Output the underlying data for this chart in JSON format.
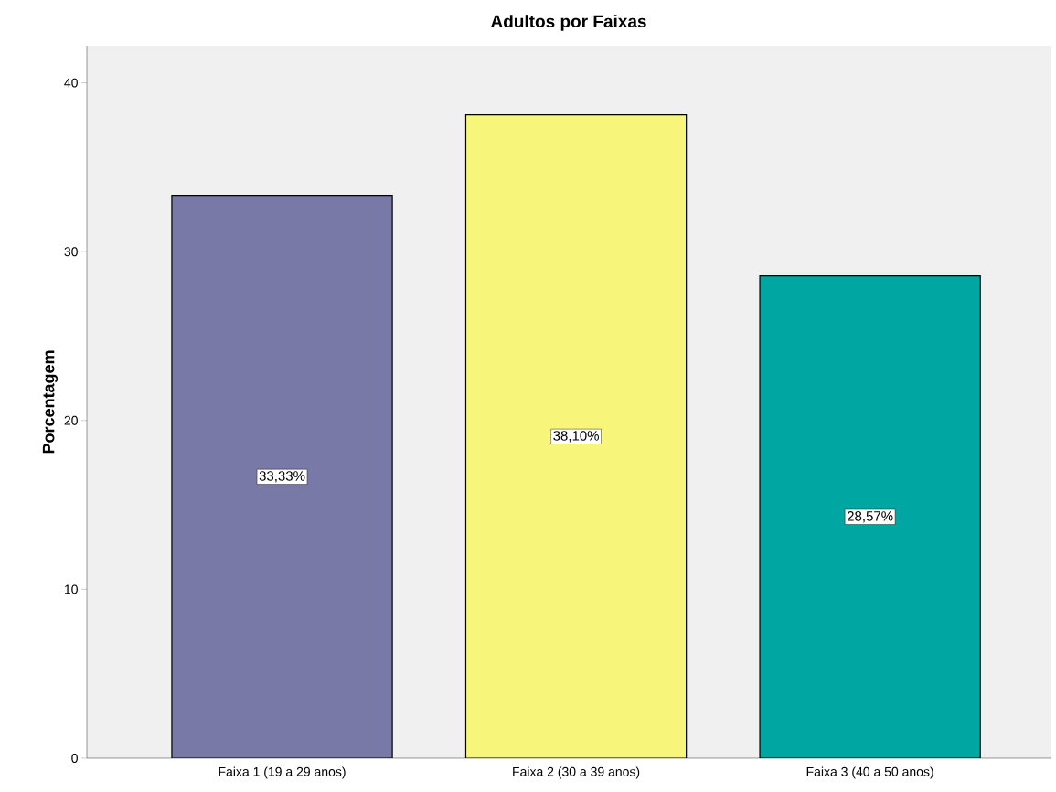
{
  "chart_data": {
    "type": "bar",
    "title": "Adultos por Faixas",
    "ylabel": "Porcentagem",
    "categories": [
      "Faixa 1 (19 a 29 anos)",
      "Faixa 2 (30 a 39 anos)",
      "Faixa 3 (40 a 50 anos)"
    ],
    "values": [
      33.33,
      38.1,
      28.57
    ],
    "colors": [
      "#7879a7",
      "#f7f57a",
      "#00a6a2"
    ],
    "value_labels": [
      "33,33%",
      "38,10%",
      "28,57%"
    ],
    "ylim": [
      0,
      42.2
    ],
    "yticks": [
      0,
      10,
      20,
      30,
      40
    ],
    "grid": false
  }
}
